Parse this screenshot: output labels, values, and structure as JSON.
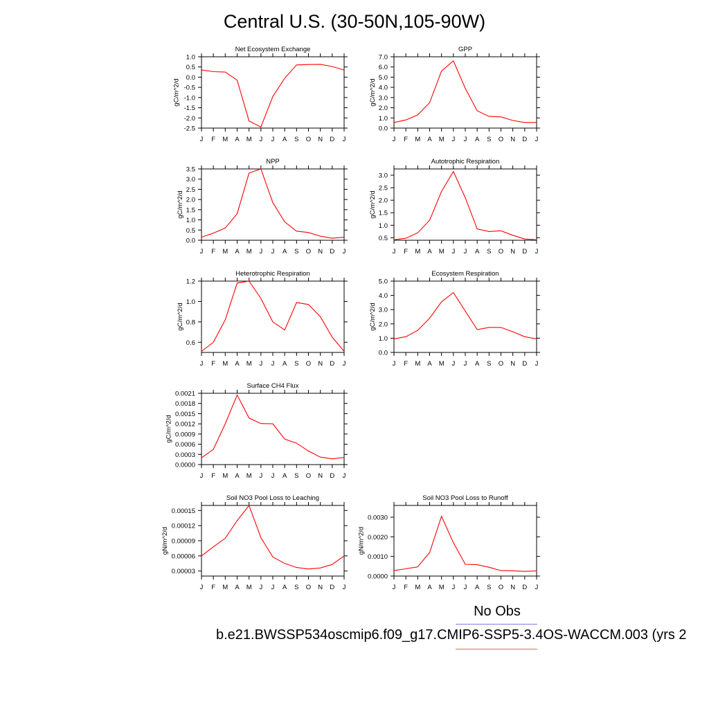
{
  "figure": {
    "title": "Central U.S. (30-50N,105-90W)",
    "legend_label": "No Obs",
    "case_name": "b.e21.BWSSP534oscmip6.f09_g17.CMIP6-SSP5-3.4OS-WACCM.003 (yrs 2",
    "line_color": "#ff0000",
    "legend_blue": "#7f7fe0",
    "legend_red": "#e06060"
  },
  "chart_data": [
    {
      "type": "line",
      "title": "Net Ecosystem Exchange",
      "ylabel": "gC/m^2/d",
      "categories": [
        "J",
        "F",
        "M",
        "A",
        "M",
        "J",
        "J",
        "A",
        "S",
        "O",
        "N",
        "D",
        "J"
      ],
      "values": [
        0.35,
        0.27,
        0.25,
        -0.15,
        -2.15,
        -2.45,
        -0.95,
        -0.05,
        0.6,
        0.62,
        0.63,
        0.52,
        0.35
      ],
      "ylim": [
        -2.5,
        1.0
      ],
      "yticks": [
        "1.0",
        "0.5",
        "0.0",
        "-0.5",
        "-1.0",
        "-1.5",
        "-2.0",
        "-2.5"
      ]
    },
    {
      "type": "line",
      "title": "GPP",
      "ylabel": "gC/m^2/d",
      "categories": [
        "J",
        "F",
        "M",
        "A",
        "M",
        "J",
        "J",
        "A",
        "S",
        "O",
        "N",
        "D",
        "J"
      ],
      "values": [
        0.55,
        0.8,
        1.3,
        2.5,
        5.6,
        6.6,
        3.9,
        1.7,
        1.15,
        1.1,
        0.75,
        0.55,
        0.55
      ],
      "ylim": [
        0.0,
        7.0
      ],
      "yticks": [
        "7.0",
        "6.0",
        "5.0",
        "4.0",
        "3.0",
        "2.0",
        "1.0",
        "0.0"
      ]
    },
    {
      "type": "line",
      "title": "NPP",
      "ylabel": "gC/m^2/d",
      "categories": [
        "J",
        "F",
        "M",
        "A",
        "M",
        "J",
        "J",
        "A",
        "S",
        "O",
        "N",
        "D",
        "J"
      ],
      "values": [
        0.15,
        0.35,
        0.6,
        1.3,
        3.3,
        3.5,
        1.85,
        0.9,
        0.45,
        0.38,
        0.2,
        0.1,
        0.15
      ],
      "ylim": [
        0.0,
        3.5
      ],
      "yticks": [
        "3.5",
        "3.0",
        "2.5",
        "2.0",
        "1.5",
        "1.0",
        "0.5",
        "0.0"
      ]
    },
    {
      "type": "line",
      "title": "Autotrophic Respiration",
      "ylabel": "gC/m^2/d",
      "categories": [
        "J",
        "F",
        "M",
        "A",
        "M",
        "J",
        "J",
        "A",
        "S",
        "O",
        "N",
        "D",
        "J"
      ],
      "values": [
        0.42,
        0.48,
        0.7,
        1.2,
        2.35,
        3.15,
        2.1,
        0.85,
        0.75,
        0.78,
        0.6,
        0.45,
        0.42
      ],
      "ylim": [
        0.4,
        3.25
      ],
      "yticks": [
        "3.0",
        "2.5",
        "2.0",
        "1.5",
        "1.0",
        "0.5"
      ]
    },
    {
      "type": "line",
      "title": "Heterotrophic Respiration",
      "ylabel": "gC/m^2/d",
      "categories": [
        "J",
        "F",
        "M",
        "A",
        "M",
        "J",
        "J",
        "A",
        "S",
        "O",
        "N",
        "D",
        "J"
      ],
      "values": [
        0.51,
        0.6,
        0.82,
        1.18,
        1.2,
        1.03,
        0.8,
        0.72,
        0.99,
        0.97,
        0.85,
        0.65,
        0.51
      ],
      "ylim": [
        0.5,
        1.2
      ],
      "yticks": [
        "1.2",
        "1.0",
        "0.8",
        "0.6"
      ]
    },
    {
      "type": "line",
      "title": "Ecosystem Respiration",
      "ylabel": "gC/m^2/d",
      "categories": [
        "J",
        "F",
        "M",
        "A",
        "M",
        "J",
        "J",
        "A",
        "S",
        "O",
        "N",
        "D",
        "J"
      ],
      "values": [
        0.95,
        1.1,
        1.55,
        2.4,
        3.55,
        4.2,
        2.9,
        1.6,
        1.75,
        1.75,
        1.45,
        1.1,
        0.95
      ],
      "ylim": [
        0.0,
        5.0
      ],
      "yticks": [
        "5.0",
        "4.0",
        "3.0",
        "2.0",
        "1.0",
        "0.0"
      ]
    },
    {
      "type": "line",
      "title": "Surface CH4 Flux",
      "ylabel": "gC/m^2/d",
      "categories": [
        "J",
        "F",
        "M",
        "A",
        "M",
        "J",
        "J",
        "A",
        "S",
        "O",
        "N",
        "D",
        "J"
      ],
      "values": [
        0.0002,
        0.00045,
        0.0012,
        0.00205,
        0.00137,
        0.00121,
        0.0012,
        0.00075,
        0.00063,
        0.0004,
        0.00022,
        0.00017,
        0.00021
      ],
      "ylim": [
        0.0,
        0.0021
      ],
      "yticks": [
        "0.0021",
        "0.0018",
        "0.0015",
        "0.0012",
        "0.0009",
        "0.0006",
        "0.0003",
        "0.0000"
      ]
    },
    {
      "type": "line",
      "title": "Soil NO3 Pool Loss to Leaching",
      "ylabel": "gN/m^2/d",
      "categories": [
        "J",
        "F",
        "M",
        "A",
        "M",
        "J",
        "J",
        "A",
        "S",
        "O",
        "N",
        "D",
        "J"
      ],
      "values": [
        6e-05,
        7.8e-05,
        9.5e-05,
        0.00013,
        0.00016,
        9.6e-05,
        5.8e-05,
        4.5e-05,
        3.7e-05,
        3.4e-05,
        3.6e-05,
        4.3e-05,
        6e-05
      ],
      "ylim": [
        2e-05,
        0.00016
      ],
      "yticks": [
        "0.00015",
        "0.00012",
        "0.00009",
        "0.00006",
        "0.00003"
      ]
    },
    {
      "type": "line",
      "title": "Soil NO3 Pool Loss to Runoff",
      "ylabel": "gN/m^2/d",
      "categories": [
        "J",
        "F",
        "M",
        "A",
        "M",
        "J",
        "J",
        "A",
        "S",
        "O",
        "N",
        "D",
        "J"
      ],
      "values": [
        0.00028,
        0.00037,
        0.00047,
        0.0012,
        0.00305,
        0.0017,
        0.0006,
        0.00058,
        0.00045,
        0.00028,
        0.00027,
        0.00024,
        0.00026
      ],
      "ylim": [
        0.0,
        0.0036
      ],
      "yticks": [
        "0.0030",
        "0.0020",
        "0.0010",
        "0.0000"
      ]
    }
  ]
}
